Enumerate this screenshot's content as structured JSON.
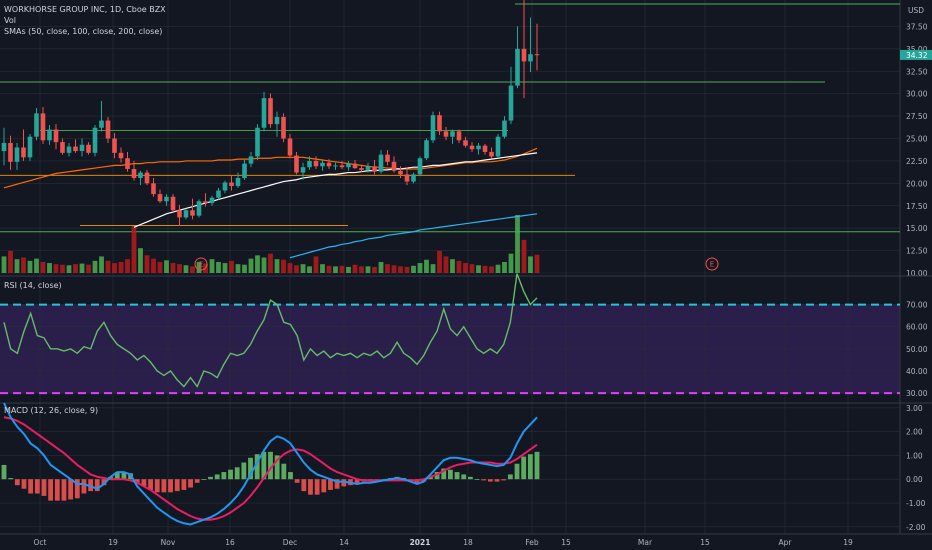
{
  "header": {
    "symbol_line": "WORKHORSE GROUP INC, 1D, Cboe BZX",
    "vol_label": "Vol",
    "sma_label": "SMAs (50, close, 100, close, 200, close)",
    "currency": "USD",
    "last_price": "34.32"
  },
  "rsi_panel": {
    "label": "RSI (14, close)"
  },
  "macd_panel": {
    "label": "MACD (12, 26, close, 9)"
  },
  "colors": {
    "background": "#131722",
    "grid": "#2a2e39",
    "axis_text": "#b2b5be",
    "up": "#26a69a",
    "down": "#ef5350",
    "vol_up": "#4caf50",
    "vol_down": "#b71c1c",
    "hline": "#4caf50",
    "hline_orange": "#ff9800",
    "sma50": "#ffffff",
    "sma100": "#ff6d00",
    "sma200": "#29b6f6",
    "rsi_line": "#66bb6a",
    "rsi_band": "#2a1f4a",
    "rsi_upper": "#26c6da",
    "rsi_lower": "#e040fb",
    "macd_line": "#2196f3",
    "macd_signal": "#e91e63",
    "hist_up": "#66bb6a",
    "hist_down": "#ef5350",
    "earnings": "#ef5350"
  },
  "chart_data": [
    {
      "type": "candlestick",
      "title": "WORKHORSE GROUP INC, 1D, Cboe BZX",
      "ylim": [
        10,
        40
      ],
      "y_ticks": [
        "10.00",
        "12.50",
        "15.00",
        "17.50",
        "20.00",
        "22.50",
        "25.00",
        "27.50",
        "30.00",
        "32.50",
        "35.00",
        "37.50"
      ],
      "x_ticks": [
        "Oct",
        "19",
        "Nov",
        "16",
        "Dec",
        "14",
        "2021",
        "18",
        "Feb",
        "15",
        "Mar",
        "15",
        "Apr",
        "19"
      ],
      "horizontal_levels": [
        40,
        31.3,
        25.9,
        20.9,
        15.3,
        14.6
      ],
      "earnings_markers": [
        "E",
        "E"
      ],
      "candles": [
        {
          "o": 23.6,
          "h": 26.2,
          "l": 22.0,
          "c": 24.5
        },
        {
          "o": 24.5,
          "h": 25.3,
          "l": 21.5,
          "c": 22.4
        },
        {
          "o": 22.4,
          "h": 24.5,
          "l": 21.5,
          "c": 24.0
        },
        {
          "o": 24.0,
          "h": 26.0,
          "l": 22.5,
          "c": 22.9
        },
        {
          "o": 22.9,
          "h": 25.5,
          "l": 22.5,
          "c": 25.2
        },
        {
          "o": 25.2,
          "h": 28.4,
          "l": 24.8,
          "c": 27.8
        },
        {
          "o": 27.8,
          "h": 28.5,
          "l": 24.4,
          "c": 24.8
        },
        {
          "o": 24.8,
          "h": 26.5,
          "l": 24.3,
          "c": 26.0
        },
        {
          "o": 26.0,
          "h": 26.6,
          "l": 23.8,
          "c": 24.6
        },
        {
          "o": 24.6,
          "h": 25.0,
          "l": 23.2,
          "c": 23.4
        },
        {
          "o": 23.4,
          "h": 24.5,
          "l": 23.0,
          "c": 24.1
        },
        {
          "o": 24.1,
          "h": 24.9,
          "l": 23.4,
          "c": 23.6
        },
        {
          "o": 23.6,
          "h": 25.0,
          "l": 23.0,
          "c": 24.3
        },
        {
          "o": 24.3,
          "h": 24.6,
          "l": 23.2,
          "c": 23.4
        },
        {
          "o": 23.4,
          "h": 26.5,
          "l": 23.0,
          "c": 26.2
        },
        {
          "o": 26.2,
          "h": 29.2,
          "l": 25.8,
          "c": 27.0
        },
        {
          "o": 27.0,
          "h": 27.4,
          "l": 24.5,
          "c": 25.0
        },
        {
          "o": 25.0,
          "h": 25.6,
          "l": 22.8,
          "c": 23.4
        },
        {
          "o": 23.4,
          "h": 24.0,
          "l": 22.3,
          "c": 22.8
        },
        {
          "o": 22.8,
          "h": 23.5,
          "l": 21.3,
          "c": 21.6
        },
        {
          "o": 21.6,
          "h": 22.5,
          "l": 20.3,
          "c": 20.6
        },
        {
          "o": 20.6,
          "h": 21.4,
          "l": 19.8,
          "c": 21.2
        },
        {
          "o": 21.2,
          "h": 21.5,
          "l": 19.8,
          "c": 20.0
        },
        {
          "o": 20.0,
          "h": 20.6,
          "l": 18.5,
          "c": 18.8
        },
        {
          "o": 18.8,
          "h": 19.3,
          "l": 17.8,
          "c": 18.0
        },
        {
          "o": 18.0,
          "h": 18.8,
          "l": 17.5,
          "c": 18.5
        },
        {
          "o": 18.5,
          "h": 18.8,
          "l": 16.8,
          "c": 17.0
        },
        {
          "o": 17.0,
          "h": 17.6,
          "l": 15.3,
          "c": 16.2
        },
        {
          "o": 16.2,
          "h": 17.2,
          "l": 16.0,
          "c": 17.0
        },
        {
          "o": 17.0,
          "h": 18.3,
          "l": 16.0,
          "c": 16.4
        },
        {
          "o": 16.4,
          "h": 18.2,
          "l": 16.2,
          "c": 18.0
        },
        {
          "o": 18.0,
          "h": 18.9,
          "l": 17.4,
          "c": 17.8
        },
        {
          "o": 17.8,
          "h": 18.6,
          "l": 17.5,
          "c": 18.4
        },
        {
          "o": 18.4,
          "h": 19.5,
          "l": 18.2,
          "c": 19.2
        },
        {
          "o": 19.2,
          "h": 20.3,
          "l": 18.9,
          "c": 20.1
        },
        {
          "o": 20.1,
          "h": 20.8,
          "l": 19.2,
          "c": 19.7
        },
        {
          "o": 19.7,
          "h": 21.2,
          "l": 19.5,
          "c": 20.6
        },
        {
          "o": 20.6,
          "h": 22.6,
          "l": 20.4,
          "c": 22.2
        },
        {
          "o": 22.2,
          "h": 23.5,
          "l": 21.8,
          "c": 23.0
        },
        {
          "o": 23.0,
          "h": 26.6,
          "l": 22.6,
          "c": 26.2
        },
        {
          "o": 26.2,
          "h": 30.2,
          "l": 25.8,
          "c": 29.5
        },
        {
          "o": 29.5,
          "h": 30.0,
          "l": 26.2,
          "c": 26.6
        },
        {
          "o": 26.6,
          "h": 28.0,
          "l": 25.2,
          "c": 27.4
        },
        {
          "o": 27.4,
          "h": 27.8,
          "l": 24.6,
          "c": 25.0
        },
        {
          "o": 25.0,
          "h": 25.5,
          "l": 22.8,
          "c": 23.1
        },
        {
          "o": 23.1,
          "h": 23.5,
          "l": 21.0,
          "c": 21.2
        },
        {
          "o": 21.2,
          "h": 22.3,
          "l": 20.4,
          "c": 21.8
        },
        {
          "o": 21.8,
          "h": 23.0,
          "l": 21.5,
          "c": 22.5
        },
        {
          "o": 22.5,
          "h": 23.0,
          "l": 21.6,
          "c": 21.9
        },
        {
          "o": 21.9,
          "h": 22.6,
          "l": 21.4,
          "c": 22.3
        },
        {
          "o": 22.3,
          "h": 22.7,
          "l": 21.6,
          "c": 21.9
        },
        {
          "o": 21.9,
          "h": 22.3,
          "l": 21.5,
          "c": 22.0
        },
        {
          "o": 22.0,
          "h": 22.5,
          "l": 21.6,
          "c": 21.8
        },
        {
          "o": 21.8,
          "h": 22.5,
          "l": 21.4,
          "c": 22.2
        },
        {
          "o": 22.2,
          "h": 22.6,
          "l": 21.6,
          "c": 21.7
        },
        {
          "o": 21.7,
          "h": 22.0,
          "l": 21.3,
          "c": 21.5
        },
        {
          "o": 21.5,
          "h": 22.3,
          "l": 21.2,
          "c": 21.9
        },
        {
          "o": 21.9,
          "h": 22.6,
          "l": 21.0,
          "c": 21.3
        },
        {
          "o": 21.3,
          "h": 23.7,
          "l": 21.1,
          "c": 23.2
        },
        {
          "o": 23.2,
          "h": 23.7,
          "l": 22.0,
          "c": 22.4
        },
        {
          "o": 22.4,
          "h": 23.0,
          "l": 21.2,
          "c": 21.4
        },
        {
          "o": 21.4,
          "h": 21.9,
          "l": 20.6,
          "c": 21.0
        },
        {
          "o": 21.0,
          "h": 21.8,
          "l": 19.8,
          "c": 20.2
        },
        {
          "o": 20.2,
          "h": 21.2,
          "l": 20.0,
          "c": 21.0
        },
        {
          "o": 21.0,
          "h": 23.0,
          "l": 20.8,
          "c": 22.8
        },
        {
          "o": 22.8,
          "h": 25.0,
          "l": 22.6,
          "c": 24.8
        },
        {
          "o": 24.8,
          "h": 28.0,
          "l": 24.5,
          "c": 27.6
        },
        {
          "o": 27.6,
          "h": 28.0,
          "l": 25.4,
          "c": 25.8
        },
        {
          "o": 25.8,
          "h": 26.3,
          "l": 24.8,
          "c": 25.2
        },
        {
          "o": 25.2,
          "h": 26.0,
          "l": 24.4,
          "c": 25.8
        },
        {
          "o": 25.8,
          "h": 26.0,
          "l": 24.5,
          "c": 24.8
        },
        {
          "o": 24.8,
          "h": 25.2,
          "l": 24.0,
          "c": 24.2
        },
        {
          "o": 24.2,
          "h": 24.6,
          "l": 23.5,
          "c": 23.8
        },
        {
          "o": 23.8,
          "h": 24.5,
          "l": 23.2,
          "c": 24.2
        },
        {
          "o": 24.2,
          "h": 24.4,
          "l": 23.2,
          "c": 23.5
        },
        {
          "o": 23.5,
          "h": 24.0,
          "l": 22.8,
          "c": 23.0
        },
        {
          "o": 23.0,
          "h": 25.5,
          "l": 22.8,
          "c": 25.2
        },
        {
          "o": 25.2,
          "h": 27.5,
          "l": 25.0,
          "c": 27.0
        },
        {
          "o": 27.0,
          "h": 33.0,
          "l": 26.6,
          "c": 30.9
        },
        {
          "o": 30.9,
          "h": 37.5,
          "l": 30.6,
          "c": 35.0
        },
        {
          "o": 35.0,
          "h": 42.0,
          "l": 29.5,
          "c": 33.6
        },
        {
          "o": 33.6,
          "h": 38.5,
          "l": 32.4,
          "c": 34.4
        },
        {
          "o": 34.4,
          "h": 37.8,
          "l": 32.6,
          "c": 34.3
        }
      ],
      "volume": [
        3,
        4,
        2.5,
        2.8,
        2.2,
        2.6,
        2.0,
        1.8,
        1.6,
        1.5,
        1.4,
        1.6,
        1.7,
        1.5,
        2.2,
        3.0,
        2.2,
        1.8,
        2.0,
        2.5,
        8.5,
        4.5,
        3.2,
        2.6,
        2.0,
        2.3,
        1.8,
        1.6,
        1.4,
        1.2,
        2.0,
        1.7,
        2.5,
        2.0,
        1.8,
        2.2,
        1.6,
        1.5,
        2.6,
        3.2,
        2.8,
        3.5,
        2.5,
        2.4,
        1.8,
        1.4,
        1.6,
        1.2,
        3.0,
        1.6,
        1.3,
        1.2,
        1.3,
        1.1,
        1.5,
        1.2,
        1.2,
        1.1,
        2.0,
        1.6,
        1.4,
        1.2,
        1.1,
        1.3,
        1.8,
        2.4,
        1.6,
        4.0,
        3.0,
        2.5,
        2.2,
        1.8,
        1.6,
        1.4,
        1.3,
        1.2,
        1.5,
        2.0,
        3.5,
        10.5,
        6.0,
        3.0,
        3.3
      ],
      "sma50": [
        null,
        null,
        null,
        null,
        null,
        null,
        null,
        null,
        null,
        null,
        null,
        null,
        null,
        null,
        null,
        null,
        null,
        null,
        null,
        null,
        15.1,
        15.4,
        15.7,
        16.0,
        16.3,
        16.6,
        16.8,
        17.0,
        17.2,
        17.4,
        17.6,
        17.8,
        18.0,
        18.2,
        18.4,
        18.6,
        18.8,
        19.0,
        19.2,
        19.4,
        19.6,
        19.8,
        20.0,
        20.2,
        20.3,
        20.4,
        20.6,
        20.7,
        20.8,
        20.9,
        21.0,
        21.0,
        21.1,
        21.2,
        21.2,
        21.3,
        21.4,
        21.4,
        21.5,
        21.5,
        21.6,
        21.6,
        21.7,
        21.8,
        21.8,
        21.9,
        22.0,
        22.0,
        22.1,
        22.2,
        22.3,
        22.4,
        22.4,
        22.5,
        22.6,
        22.7,
        22.8,
        22.9,
        23.0,
        23.1,
        23.2,
        23.3,
        23.4
      ],
      "sma100": [
        19.5,
        19.7,
        19.9,
        20.1,
        20.3,
        20.5,
        20.7,
        20.9,
        21.1,
        21.2,
        21.3,
        21.4,
        21.5,
        21.6,
        21.7,
        21.8,
        21.9,
        22.0,
        22.0,
        22.1,
        22.2,
        22.2,
        22.3,
        22.3,
        22.4,
        22.4,
        22.4,
        22.4,
        22.5,
        22.5,
        22.5,
        22.5,
        22.5,
        22.6,
        22.6,
        22.6,
        22.7,
        22.7,
        22.7,
        22.8,
        22.8,
        22.8,
        22.9,
        22.9,
        22.9,
        22.9,
        22.9,
        22.8,
        22.7,
        22.6,
        22.5,
        22.4,
        22.3,
        22.2,
        22.1,
        22.0,
        21.9,
        21.8,
        21.8,
        21.7,
        21.7,
        21.6,
        21.6,
        21.6,
        21.6,
        21.7,
        21.8,
        21.9,
        22.0,
        22.1,
        22.2,
        22.3,
        22.3,
        22.4,
        22.4,
        22.4,
        22.5,
        22.6,
        22.8,
        23.0,
        23.3,
        23.6,
        23.9
      ],
      "sma200": [
        null,
        null,
        null,
        null,
        null,
        null,
        null,
        null,
        null,
        null,
        null,
        null,
        null,
        null,
        null,
        null,
        null,
        null,
        null,
        null,
        null,
        null,
        null,
        null,
        null,
        null,
        null,
        null,
        null,
        null,
        null,
        null,
        null,
        null,
        null,
        null,
        null,
        null,
        null,
        null,
        null,
        null,
        null,
        null,
        11.7,
        11.9,
        12.1,
        12.3,
        12.5,
        12.7,
        12.9,
        13.0,
        13.2,
        13.3,
        13.5,
        13.6,
        13.8,
        13.9,
        14.0,
        14.2,
        14.3,
        14.4,
        14.5,
        14.6,
        14.8,
        14.9,
        15.0,
        15.1,
        15.2,
        15.3,
        15.4,
        15.5,
        15.6,
        15.7,
        15.8,
        15.9,
        16.0,
        16.1,
        16.2,
        16.3,
        16.4,
        16.5,
        16.6
      ]
    },
    {
      "type": "line",
      "title": "RSI (14, close)",
      "ylim": [
        26,
        82
      ],
      "y_ticks": [
        "30.00",
        "40.00",
        "50.00",
        "60.00",
        "70.00"
      ],
      "upper_band": 70,
      "lower_band": 30,
      "values": [
        62,
        50,
        48,
        58,
        66,
        56,
        55,
        50,
        50,
        49,
        50,
        48,
        51,
        50,
        58,
        62,
        56,
        52,
        50,
        48,
        45,
        47,
        44,
        40,
        38,
        40,
        36,
        33,
        37,
        33,
        40,
        39,
        37,
        43,
        48,
        47,
        48,
        52,
        58,
        63,
        72,
        70,
        62,
        61,
        56,
        45,
        50,
        47,
        49,
        46,
        48,
        47,
        48,
        46,
        48,
        47,
        49,
        46,
        48,
        53,
        48,
        46,
        43,
        47,
        53,
        58,
        68,
        59,
        56,
        60,
        55,
        50,
        48,
        50,
        48,
        52,
        62,
        84,
        76,
        70,
        73
      ]
    },
    {
      "type": "line",
      "title": "MACD (12, 26, close, 9)",
      "ylim": [
        -2.3,
        3.2
      ],
      "y_ticks": [
        "-2.00",
        "-1.00",
        "0.00",
        "1.00",
        "2.00",
        "3.00"
      ],
      "macd": [
        3.2,
        2.6,
        2.2,
        1.9,
        1.5,
        1.3,
        1.0,
        0.6,
        0.4,
        0.2,
        0.0,
        -0.2,
        -0.2,
        -0.3,
        -0.4,
        -0.2,
        0.1,
        0.3,
        0.3,
        0.2,
        -0.3,
        -0.6,
        -0.9,
        -1.2,
        -1.4,
        -1.6,
        -1.75,
        -1.85,
        -1.9,
        -1.8,
        -1.7,
        -1.6,
        -1.45,
        -1.25,
        -1.0,
        -0.7,
        -0.3,
        0.2,
        0.7,
        1.2,
        1.6,
        1.8,
        1.7,
        1.5,
        1.1,
        0.7,
        0.4,
        0.2,
        0.1,
        0.0,
        -0.1,
        -0.1,
        -0.15,
        -0.2,
        -0.15,
        -0.15,
        -0.1,
        -0.05,
        0.0,
        0.05,
        0.0,
        -0.1,
        -0.2,
        -0.1,
        0.2,
        0.5,
        0.8,
        0.9,
        0.9,
        0.85,
        0.8,
        0.7,
        0.65,
        0.6,
        0.55,
        0.6,
        0.9,
        1.5,
        2.0,
        2.3,
        2.6
      ],
      "signal": [
        2.6,
        2.55,
        2.45,
        2.3,
        2.1,
        1.9,
        1.7,
        1.5,
        1.3,
        1.1,
        0.85,
        0.6,
        0.4,
        0.2,
        0.1,
        0.05,
        0.0,
        0.0,
        0.0,
        -0.05,
        -0.15,
        -0.3,
        -0.45,
        -0.65,
        -0.85,
        -1.05,
        -1.25,
        -1.4,
        -1.55,
        -1.65,
        -1.7,
        -1.7,
        -1.65,
        -1.55,
        -1.4,
        -1.2,
        -1.0,
        -0.7,
        -0.35,
        0.05,
        0.45,
        0.8,
        1.05,
        1.2,
        1.25,
        1.2,
        1.05,
        0.85,
        0.65,
        0.45,
        0.3,
        0.2,
        0.1,
        0.0,
        -0.05,
        -0.05,
        -0.05,
        -0.05,
        -0.05,
        -0.05,
        -0.05,
        -0.05,
        -0.05,
        0.0,
        0.1,
        0.2,
        0.35,
        0.5,
        0.6,
        0.65,
        0.7,
        0.7,
        0.7,
        0.7,
        0.65,
        0.65,
        0.7,
        0.85,
        1.05,
        1.25,
        1.45
      ]
    }
  ]
}
